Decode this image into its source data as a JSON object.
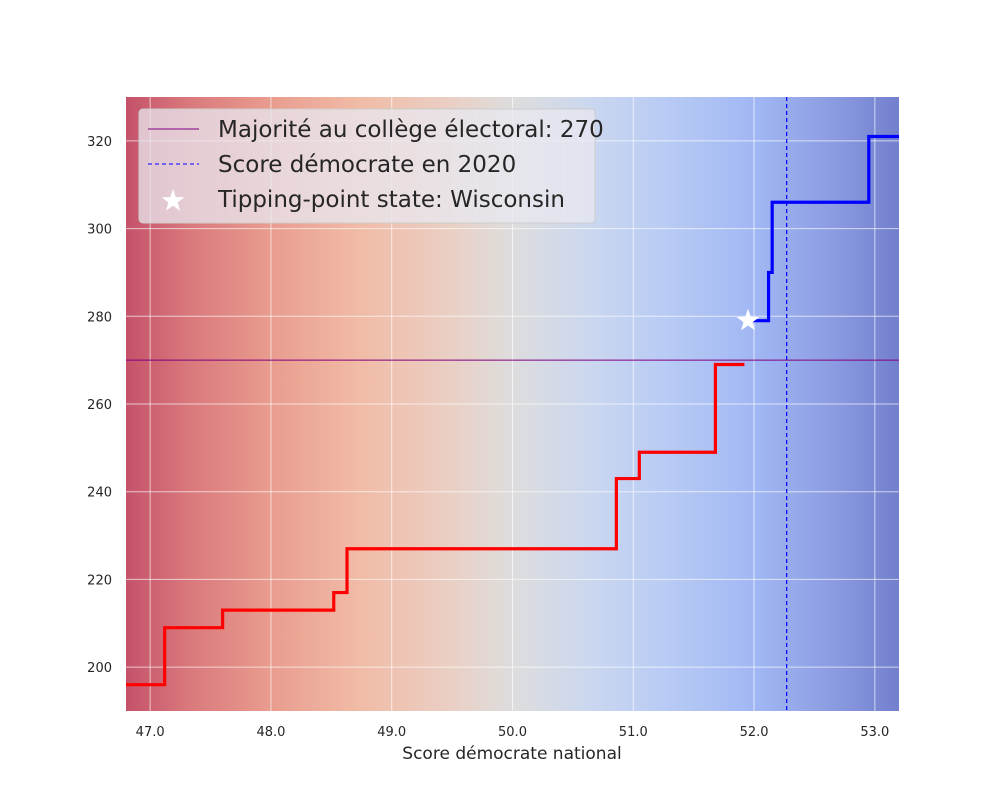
{
  "chart_data": {
    "type": "line",
    "title": "",
    "xlabel": "Score démocrate national",
    "ylabel": "",
    "xlim": [
      46.8,
      53.2
    ],
    "ylim": [
      190,
      330
    ],
    "x_ticks": [
      47.0,
      48.0,
      49.0,
      50.0,
      51.0,
      52.0,
      53.0
    ],
    "x_tick_labels": [
      "47.0",
      "48.0",
      "49.0",
      "50.0",
      "51.0",
      "52.0",
      "53.0"
    ],
    "y_ticks": [
      200,
      220,
      240,
      260,
      280,
      300,
      320
    ],
    "y_tick_labels": [
      "200",
      "220",
      "240",
      "260",
      "280",
      "300",
      "320"
    ],
    "grid": true,
    "background": "horizontal red-to-blue gradient (coolwarm)",
    "series": [
      {
        "color": "#ff0000",
        "step": "post",
        "x": [
          46.8,
          47.12,
          47.6,
          48.52,
          48.63,
          50.86,
          51.05,
          51.68,
          51.92
        ],
        "y": [
          196,
          209,
          213,
          217,
          227,
          243,
          249,
          269,
          269
        ]
      },
      {
        "color": "#0000ff",
        "step": "post",
        "x": [
          51.92,
          51.96,
          52.12,
          52.15,
          52.95,
          53.2
        ],
        "y": [
          279,
          279,
          290,
          306,
          321,
          321
        ]
      }
    ],
    "reference_lines": [
      {
        "orientation": "horizontal",
        "value": 270,
        "color": "#800080",
        "style": "solid",
        "label": "Majorité au collège électoral: 270"
      },
      {
        "orientation": "vertical",
        "value": 52.27,
        "color": "#0000ff",
        "style": "dashed",
        "label": "Score démocrate en 2020"
      }
    ],
    "markers": [
      {
        "x": 51.95,
        "y": 279,
        "shape": "star",
        "color": "#ffffff",
        "label": "Tipping-point state: Wisconsin"
      }
    ],
    "legend": {
      "placement": "top-left",
      "entries": [
        {
          "label": "Majorité au collège électoral: 270",
          "color": "#800080",
          "kind": "line"
        },
        {
          "label": "Score démocrate en 2020",
          "color": "#0000ff",
          "kind": "dashed"
        },
        {
          "label": "Tipping-point state: Wisconsin",
          "color": "#ffffff",
          "kind": "star"
        }
      ]
    }
  }
}
